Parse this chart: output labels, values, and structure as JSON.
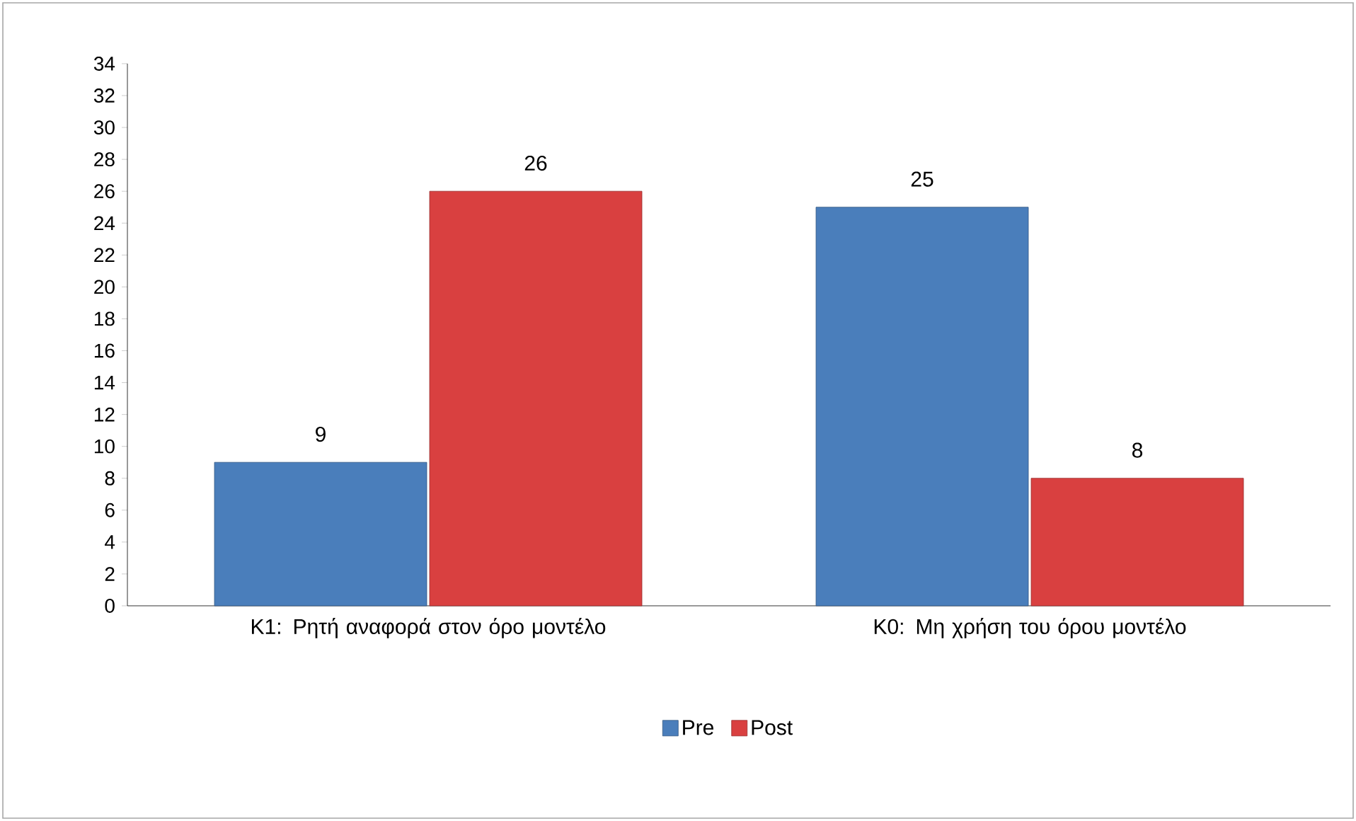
{
  "chart_data": {
    "type": "bar",
    "categories": [
      "K1: Ρητή αναφορά στον όρο μοντέλο",
      "K0: Μη χρήση του όρου μοντέλο"
    ],
    "series": [
      {
        "name": "Pre",
        "color": "#4a7ebb",
        "values": [
          9,
          25
        ]
      },
      {
        "name": "Post",
        "color": "#d94040",
        "values": [
          26,
          8
        ]
      }
    ],
    "ylim": [
      0,
      34
    ],
    "yticks": [
      0,
      2,
      4,
      6,
      8,
      10,
      12,
      14,
      16,
      18,
      20,
      22,
      24,
      26,
      28,
      30,
      32,
      34
    ],
    "data_labels": true,
    "grid": false,
    "legend": "bottom"
  }
}
